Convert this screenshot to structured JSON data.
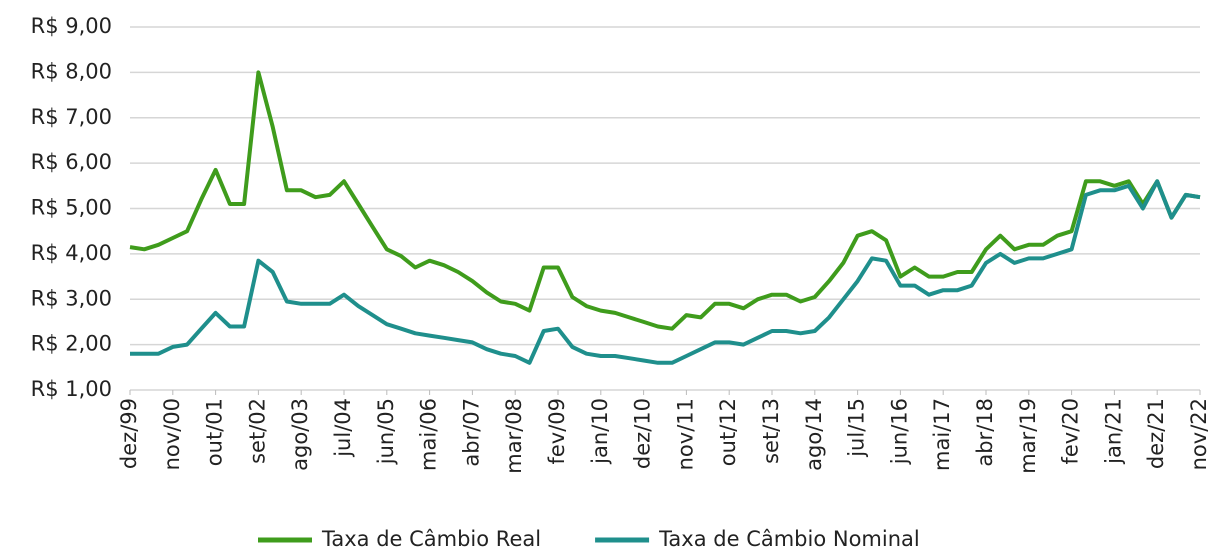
{
  "chart_data": {
    "type": "line",
    "categories": [
      "dez/99",
      null,
      null,
      "nov/00",
      null,
      null,
      "out/01",
      null,
      null,
      "set/02",
      null,
      null,
      "ago/03",
      null,
      null,
      "jul/04",
      null,
      null,
      "jun/05",
      null,
      null,
      "mai/06",
      null,
      null,
      "abr/07",
      null,
      null,
      "mar/08",
      null,
      null,
      "fev/09",
      null,
      null,
      "jan/10",
      null,
      null,
      "dez/10",
      null,
      null,
      "nov/11",
      null,
      null,
      "out/12",
      null,
      null,
      "set/13",
      null,
      null,
      "ago/14",
      null,
      null,
      "jul/15",
      null,
      null,
      "jun/16",
      null,
      null,
      "mai/17",
      null,
      null,
      "abr/18",
      null,
      null,
      "mar/19",
      null,
      null,
      "fev/20",
      null,
      null,
      "jan/21",
      null,
      null,
      "dez/21",
      null,
      null,
      "nov/22"
    ],
    "series": [
      {
        "name": "Taxa de Câmbio Real",
        "color": "#3f9c1c",
        "values": [
          4.15,
          4.1,
          4.2,
          4.35,
          4.5,
          5.2,
          5.85,
          5.1,
          5.1,
          8.0,
          6.8,
          5.4,
          5.4,
          5.25,
          5.3,
          5.6,
          5.1,
          4.6,
          4.1,
          3.95,
          3.7,
          3.85,
          3.75,
          3.6,
          3.4,
          3.15,
          2.95,
          2.9,
          2.75,
          3.7,
          3.7,
          3.05,
          2.85,
          2.75,
          2.7,
          2.6,
          2.5,
          2.4,
          2.35,
          2.65,
          2.6,
          2.9,
          2.9,
          2.8,
          3.0,
          3.1,
          3.1,
          2.95,
          3.05,
          3.4,
          3.8,
          4.4,
          4.5,
          4.3,
          3.5,
          3.7,
          3.5,
          3.5,
          3.6,
          3.6,
          4.1,
          4.4,
          4.1,
          4.2,
          4.2,
          4.4,
          4.5,
          5.6,
          5.6,
          5.5,
          5.6,
          5.1,
          5.6,
          4.8,
          5.3,
          5.25
        ]
      },
      {
        "name": "Taxa de Câmbio Nominal",
        "color": "#1f8f8c",
        "values": [
          1.8,
          1.8,
          1.8,
          1.95,
          2.0,
          2.35,
          2.7,
          2.4,
          2.4,
          3.85,
          3.6,
          2.95,
          2.9,
          2.9,
          2.9,
          3.1,
          2.85,
          2.65,
          2.45,
          2.35,
          2.25,
          2.2,
          2.15,
          2.1,
          2.05,
          1.9,
          1.8,
          1.75,
          1.6,
          2.3,
          2.35,
          1.95,
          1.8,
          1.75,
          1.75,
          1.7,
          1.65,
          1.6,
          1.6,
          1.75,
          1.9,
          2.05,
          2.05,
          2.0,
          2.15,
          2.3,
          2.3,
          2.25,
          2.3,
          2.6,
          3.0,
          3.4,
          3.9,
          3.85,
          3.3,
          3.3,
          3.1,
          3.2,
          3.2,
          3.3,
          3.8,
          4.0,
          3.8,
          3.9,
          3.9,
          4.0,
          4.1,
          5.3,
          5.4,
          5.4,
          5.5,
          5.0,
          5.6,
          4.8,
          5.3,
          5.25
        ]
      }
    ],
    "ylim": [
      1,
      9
    ],
    "yticks": [
      {
        "value": 1,
        "label": "R$ 1,00"
      },
      {
        "value": 2,
        "label": "R$ 2,00"
      },
      {
        "value": 3,
        "label": "R$ 3,00"
      },
      {
        "value": 4,
        "label": "R$ 4,00"
      },
      {
        "value": 5,
        "label": "R$ 5,00"
      },
      {
        "value": 6,
        "label": "R$ 6,00"
      },
      {
        "value": 7,
        "label": "R$ 7,00"
      },
      {
        "value": 8,
        "label": "R$ 8,00"
      },
      {
        "value": 9,
        "label": "R$ 9,00"
      }
    ],
    "grid": true,
    "legend": "bottom"
  }
}
